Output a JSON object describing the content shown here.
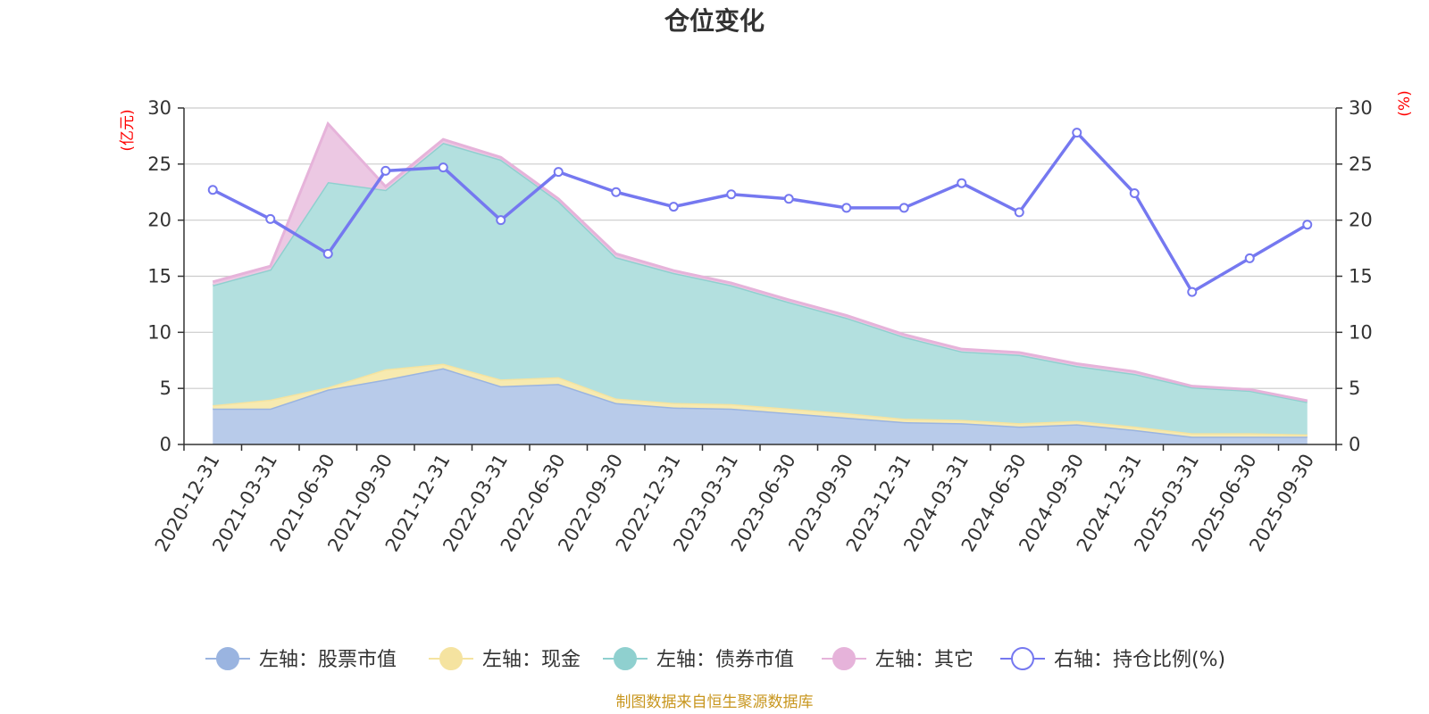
{
  "chart_data": {
    "type": "area",
    "title": "仓位变化",
    "left_axis_unit": "(亿元)",
    "right_axis_unit": "(%)",
    "ylim_left": [
      0,
      30
    ],
    "ylim_right": [
      0,
      30
    ],
    "yticks_left": [
      0,
      5,
      10,
      15,
      20,
      25,
      30
    ],
    "yticks_right": [
      0,
      5,
      10,
      15,
      20,
      25,
      30
    ],
    "categories": [
      "2020-12-31",
      "2021-03-31",
      "2021-06-30",
      "2021-09-30",
      "2021-12-31",
      "2022-03-31",
      "2022-06-30",
      "2022-09-30",
      "2022-12-31",
      "2023-03-31",
      "2023-06-30",
      "2023-09-30",
      "2023-12-31",
      "2024-03-31",
      "2024-06-30",
      "2024-09-30",
      "2024-12-31",
      "2025-03-31",
      "2025-06-30",
      "2025-09-30"
    ],
    "stacked_series": [
      {
        "name": "左轴：股票市值",
        "color": "#9ab4e0",
        "fill": "#b8cbea",
        "values": [
          3.2,
          3.2,
          4.9,
          5.8,
          6.8,
          5.2,
          5.4,
          3.7,
          3.3,
          3.2,
          2.8,
          2.4,
          2.0,
          1.9,
          1.6,
          1.8,
          1.3,
          0.7,
          0.7,
          0.7
        ]
      },
      {
        "name": "左轴：现金",
        "color": "#f5e3a0",
        "fill": "#f7eab0",
        "values": [
          0.3,
          0.8,
          0.2,
          0.9,
          0.4,
          0.6,
          0.6,
          0.4,
          0.4,
          0.4,
          0.4,
          0.4,
          0.3,
          0.3,
          0.3,
          0.3,
          0.3,
          0.3,
          0.3,
          0.2
        ]
      },
      {
        "name": "左轴：债券市值",
        "color": "#8fd0cf",
        "fill": "#b3e0df",
        "values": [
          10.7,
          11.6,
          18.3,
          16.0,
          19.7,
          19.6,
          15.7,
          12.6,
          11.6,
          10.6,
          9.5,
          8.5,
          7.3,
          6.1,
          6.1,
          4.9,
          4.7,
          4.1,
          3.8,
          2.9
        ]
      },
      {
        "name": "左轴：其它",
        "color": "#e6b3da",
        "fill": "#ecc8e3",
        "values": [
          0.3,
          0.3,
          5.2,
          0.3,
          0.3,
          0.2,
          0.2,
          0.3,
          0.2,
          0.2,
          0.2,
          0.2,
          0.2,
          0.2,
          0.2,
          0.2,
          0.2,
          0.1,
          0.1,
          0.1
        ]
      }
    ],
    "line_series": {
      "name": "右轴：持仓比例(%)",
      "color": "#7578f0",
      "axis": "right",
      "values": [
        22.7,
        20.1,
        17.0,
        24.4,
        24.7,
        20.0,
        24.3,
        22.5,
        21.2,
        22.3,
        21.9,
        21.1,
        21.1,
        23.3,
        20.7,
        27.8,
        22.4,
        13.6,
        16.6,
        19.6
      ]
    },
    "legend_position": "bottom",
    "grid": true
  },
  "source_text": "制图数据来自恒生聚源数据库"
}
